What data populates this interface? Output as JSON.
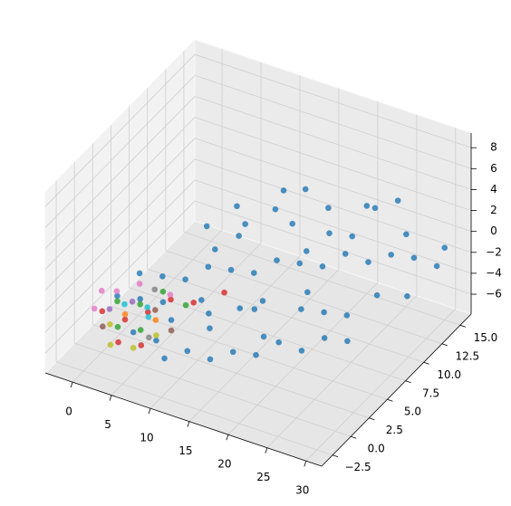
{
  "chart_data": {
    "type": "scatter3d",
    "xlim": [
      -3.5,
      32
    ],
    "ylim": [
      -4,
      16.5
    ],
    "zlim": [
      -7.9,
      9.4
    ],
    "xticks": [
      0,
      5,
      10,
      15,
      20,
      25,
      30
    ],
    "yticks": [
      {
        "value": -2.5,
        "label": "−2.5"
      },
      {
        "value": 0,
        "label": "0.0"
      },
      {
        "value": 2.5,
        "label": "2.5"
      },
      {
        "value": 5,
        "label": "5.0"
      },
      {
        "value": 7.5,
        "label": "7.5"
      },
      {
        "value": 10,
        "label": "10.0"
      },
      {
        "value": 12.5,
        "label": "12.5"
      },
      {
        "value": 15,
        "label": "15.0"
      }
    ],
    "zticks": [
      {
        "value": -6,
        "label": "−6"
      },
      {
        "value": -4,
        "label": "−4"
      },
      {
        "value": -2,
        "label": "−2"
      },
      0,
      2,
      4,
      6,
      8
    ],
    "grid": true,
    "series": [
      {
        "color": "#1f77b4",
        "x": [
          2,
          4,
          5,
          6,
          7,
          8,
          9,
          10,
          11,
          12,
          13,
          14,
          15,
          16,
          17,
          18,
          19,
          20,
          21,
          22,
          23,
          24,
          25,
          26,
          27,
          28,
          29,
          30,
          5,
          7,
          9,
          11,
          13,
          15,
          17,
          19,
          21,
          23,
          25,
          10,
          12,
          14,
          16,
          18,
          20,
          22,
          8,
          6,
          14,
          17,
          12,
          24,
          26,
          10,
          14,
          18,
          3,
          8,
          16,
          20
        ],
        "y": [
          0,
          1,
          3,
          2,
          4,
          1,
          5,
          3,
          6,
          2,
          7,
          4,
          8,
          5,
          9,
          3,
          10,
          6,
          11,
          7,
          12,
          8,
          13,
          10,
          14,
          12,
          15,
          15,
          -1,
          0,
          -1,
          0,
          1,
          2,
          3,
          4,
          5,
          6,
          7,
          9,
          11,
          13,
          14,
          12,
          15,
          14,
          10,
          8,
          10,
          8,
          6,
          15,
          14,
          4,
          6,
          9,
          2,
          7,
          11,
          13
        ],
        "z": [
          -2,
          -2.5,
          -1.5,
          -3,
          -2,
          -3.5,
          -1,
          -2.5,
          -1.5,
          -4,
          -2,
          -3,
          -1,
          -2.5,
          -1.5,
          -4,
          -2,
          -3,
          -1,
          -3.5,
          -2,
          -4,
          -1.5,
          -3,
          -2,
          -4,
          -3,
          -1,
          -4,
          -5,
          -5.5,
          -5,
          -6,
          -5.5,
          -6,
          -5,
          -6,
          -5,
          -5.5,
          0.5,
          1,
          2,
          0,
          -0.5,
          0.5,
          1.5,
          1,
          0,
          4,
          3,
          2,
          2,
          0,
          -4.5,
          -4.5,
          -4,
          -1,
          -1,
          -2,
          -1
        ]
      },
      {
        "color": "#d62728",
        "x": [
          1,
          3,
          5,
          7,
          4,
          9,
          12,
          6
        ],
        "y": [
          -1,
          0,
          1,
          2,
          -2,
          3,
          4,
          -1
        ],
        "z": [
          -3,
          -4,
          -3.5,
          -2.5,
          -4.5,
          -3,
          -2,
          -5
        ]
      },
      {
        "color": "#2ca02c",
        "x": [
          2,
          4,
          6,
          3,
          8,
          5
        ],
        "y": [
          0,
          1,
          2,
          -1,
          3,
          0
        ],
        "z": [
          -2.5,
          -3,
          -2,
          -4,
          -3.5,
          -4.5
        ]
      },
      {
        "color": "#bcbd22",
        "x": [
          3,
          5,
          7,
          2
        ],
        "y": [
          -2,
          -1,
          0,
          -1
        ],
        "z": [
          -5,
          -5.5,
          -4.5,
          -4
        ]
      },
      {
        "color": "#e377c2",
        "x": [
          0,
          1,
          3,
          0,
          6
        ],
        "y": [
          0,
          1,
          2,
          -1,
          3
        ],
        "z": [
          -2,
          -2.5,
          -2,
          -3,
          -3
        ]
      },
      {
        "color": "#17becf",
        "x": [
          2,
          4,
          6
        ],
        "y": [
          1,
          2,
          0
        ],
        "z": [
          -3.5,
          -4,
          -3
        ]
      },
      {
        "color": "#9467bd",
        "x": [
          1,
          3
        ],
        "y": [
          0,
          1
        ],
        "z": [
          -3.5,
          -3
        ]
      },
      {
        "color": "#8c564b",
        "x": [
          2,
          5,
          8
        ],
        "y": [
          -2,
          2,
          1
        ],
        "z": [
          -3.5,
          -4,
          -4.5
        ]
      },
      {
        "color": "#ff7f0e",
        "x": [
          3,
          6
        ],
        "y": [
          0,
          1
        ],
        "z": [
          -3.5,
          -4
        ]
      },
      {
        "color": "#7f7f7f",
        "x": [
          4,
          7
        ],
        "y": [
          3,
          -1
        ],
        "z": [
          -3,
          -4
        ]
      }
    ]
  }
}
